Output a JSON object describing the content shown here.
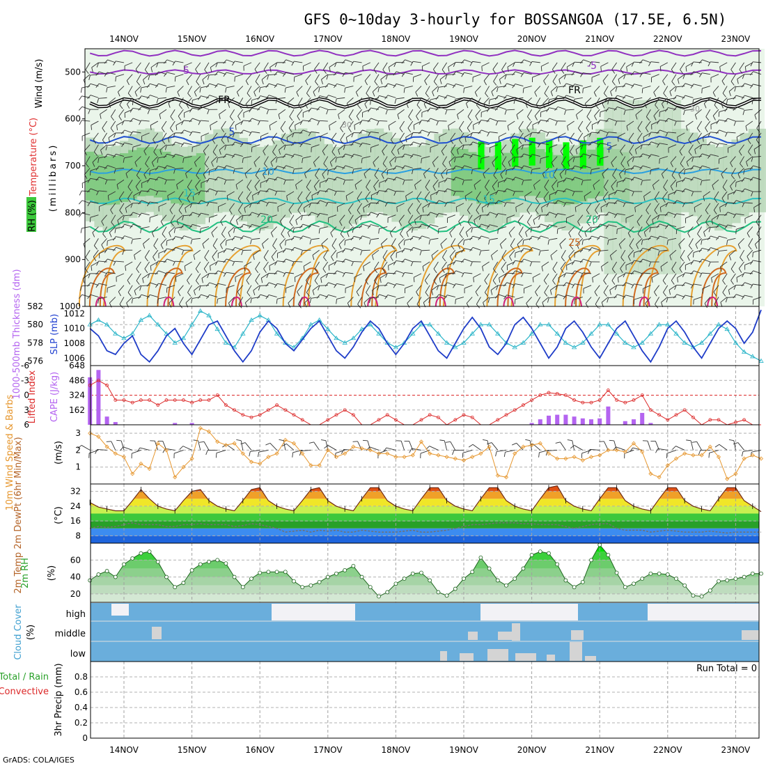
{
  "title": "GFS 0~10day 3-hourly for BOSSANGOA (17.5E, 6.5N)",
  "footer": "GrADS: COLA/IGES",
  "dates": [
    "14NOV",
    "15NOV",
    "16NOV",
    "17NOV",
    "18NOV",
    "19NOV",
    "20NOV",
    "21NOV",
    "22NOV",
    "23NOV"
  ],
  "colors": {
    "rh_light": "#e8f4e8",
    "rh_mid": "#b4d4b4",
    "rh_dark": "#78c878",
    "rh_bright": "#00ff00",
    "slp": "#1e3cc8",
    "thickness": "#28b4c8",
    "cape": "#b464f0",
    "li": "#dc2828",
    "wind_speed": "#e6962d",
    "cloud": "#6aaedc",
    "cloud_gap": "#d4d4d4"
  },
  "panels": {
    "upper": {
      "labels": [
        "RH (%)",
        "Temperature (°C)",
        "Wind (m/s)"
      ],
      "ylabel": "(millibars)",
      "yticks": [
        "500",
        "600",
        "700",
        "800",
        "900",
        "1000"
      ],
      "contour_labels": [
        "-5",
        "-5",
        "FR",
        "FR",
        "5",
        "5",
        "10",
        "10",
        "15",
        "15",
        "20",
        "20",
        "25",
        "30",
        "30"
      ]
    },
    "thickness": {
      "left_label": "1000-500mb Thickness (dm)",
      "right_label": "SLP (mb)",
      "left_ticks": [
        "582",
        "580",
        "578",
        "576"
      ],
      "right_ticks": [
        "1012",
        "1010",
        "1008",
        "1006"
      ]
    },
    "cape": {
      "left_label": "Lifted Index",
      "right_label": "CAPE (J/kg)",
      "li_ticks": [
        "-6",
        "-3",
        "0",
        "3",
        "6"
      ],
      "cape_ticks": [
        "648",
        "486",
        "324",
        "162"
      ]
    },
    "wind10m": {
      "label": "10m Wind Speed & Barbs",
      "unit": "(m/s)",
      "yticks": [
        "3",
        "2",
        "1"
      ]
    },
    "temp2m": {
      "label": "2m Temp 2m DewPt (6hr Min/Max)",
      "unit": "(°C)",
      "yticks": [
        "32",
        "24",
        "16",
        "8"
      ]
    },
    "rh2m": {
      "label": "2m RH",
      "unit": "(%)",
      "yticks": [
        "60",
        "40",
        "20"
      ]
    },
    "cloud": {
      "label": "Cloud Cover",
      "unit": "(%)",
      "levels": [
        "high",
        "middle",
        "low"
      ]
    },
    "precip": {
      "label": "3hr Precip (mm)",
      "legend_total": "Total / Rain",
      "legend_conv": "Convective",
      "run_total": "Run Total = 0",
      "yticks": [
        "0.8",
        "0.6",
        "0.4",
        "0.2",
        "0"
      ]
    }
  },
  "chart_data": {
    "type": "line",
    "x": [
      "13NOV 12Z",
      "13NOV 15Z",
      "13NOV 18Z",
      "13NOV 21Z",
      "14NOV 00Z",
      "14NOV 03Z",
      "14NOV 06Z",
      "14NOV 09Z",
      "14NOV 12Z",
      "14NOV 15Z",
      "14NOV 18Z",
      "14NOV 21Z",
      "15NOV 00Z",
      "15NOV 03Z",
      "15NOV 06Z",
      "15NOV 09Z",
      "15NOV 12Z",
      "15NOV 15Z",
      "15NOV 18Z",
      "15NOV 21Z",
      "16NOV 00Z",
      "16NOV 03Z",
      "16NOV 06Z",
      "16NOV 09Z",
      "16NOV 12Z",
      "16NOV 15Z",
      "16NOV 18Z",
      "16NOV 21Z",
      "17NOV 00Z",
      "17NOV 03Z",
      "17NOV 06Z",
      "17NOV 09Z",
      "17NOV 12Z",
      "17NOV 15Z",
      "17NOV 18Z",
      "17NOV 21Z",
      "18NOV 00Z",
      "18NOV 03Z",
      "18NOV 06Z",
      "18NOV 09Z",
      "18NOV 12Z",
      "18NOV 15Z",
      "18NOV 18Z",
      "18NOV 21Z",
      "19NOV 00Z",
      "19NOV 03Z",
      "19NOV 06Z",
      "19NOV 09Z",
      "19NOV 12Z",
      "19NOV 15Z",
      "19NOV 18Z",
      "19NOV 21Z",
      "20NOV 00Z",
      "20NOV 03Z",
      "20NOV 06Z",
      "20NOV 09Z",
      "20NOV 12Z",
      "20NOV 15Z",
      "20NOV 18Z",
      "20NOV 21Z",
      "21NOV 00Z",
      "21NOV 03Z",
      "21NOV 06Z",
      "21NOV 09Z",
      "21NOV 12Z",
      "21NOV 15Z",
      "21NOV 18Z",
      "21NOV 21Z",
      "22NOV 00Z",
      "22NOV 03Z",
      "22NOV 06Z",
      "22NOV 09Z",
      "22NOV 12Z",
      "22NOV 15Z",
      "22NOV 18Z",
      "22NOV 21Z",
      "23NOV 00Z",
      "23NOV 03Z",
      "23NOV 06Z",
      "23NOV 09Z"
    ],
    "series": [
      {
        "name": "SLP (mb)",
        "values": [
          1010,
          1009,
          1007,
          1006.5,
          1008,
          1009,
          1006.5,
          1005.5,
          1007,
          1009,
          1010,
          1008,
          1006.5,
          1008.5,
          1010.5,
          1011,
          1009,
          1007,
          1005.5,
          1007,
          1009.5,
          1011,
          1010,
          1008,
          1007,
          1008.5,
          1010,
          1011,
          1009,
          1007,
          1006,
          1007.5,
          1009.5,
          1011,
          1010,
          1008,
          1006.5,
          1008,
          1010,
          1011,
          1009,
          1007,
          1006,
          1008,
          1010,
          1011.5,
          1010,
          1007.5,
          1006.5,
          1008,
          1010.5,
          1011.5,
          1010,
          1008,
          1006,
          1007.5,
          1010,
          1011,
          1009.5,
          1007.5,
          1006,
          1008,
          1010,
          1011,
          1009,
          1007,
          1005.5,
          1007.5,
          1010,
          1011,
          1009.5,
          1007.5,
          1006,
          1008,
          1010,
          1011,
          1010,
          1008,
          1009.5,
          1012.5
        ]
      },
      {
        "name": "1000-500mb Thickness (dm)",
        "values": [
          580,
          580.5,
          580,
          579,
          578.5,
          579,
          580.5,
          581,
          580,
          579,
          578,
          578.5,
          580,
          581.5,
          581,
          579.5,
          578,
          577.5,
          579,
          580.5,
          581,
          580.5,
          579,
          578,
          577.5,
          578.5,
          580,
          580.5,
          579.5,
          578.5,
          578,
          578.5,
          579.5,
          580,
          579,
          578,
          577.5,
          578,
          579,
          580,
          580,
          579,
          578,
          577.5,
          578,
          579,
          580,
          580,
          579,
          578,
          577.5,
          578,
          579,
          580,
          580,
          579,
          578,
          577.5,
          578,
          579,
          580,
          580,
          579,
          578,
          577.5,
          578,
          579,
          580,
          580,
          579,
          578,
          577.5,
          578,
          579,
          580,
          579.5,
          578,
          577,
          576.5,
          576
        ]
      },
      {
        "name": "Lifted Index",
        "values": [
          -2,
          -3,
          -2,
          1,
          1,
          1.5,
          1,
          1,
          2,
          1,
          1,
          1,
          1.5,
          1,
          1,
          0,
          2,
          3,
          4,
          4.5,
          4,
          3,
          2,
          3,
          4,
          5,
          6,
          6,
          5,
          4,
          3,
          4,
          6,
          6,
          5,
          4,
          5,
          6,
          6,
          5,
          4,
          4.5,
          6,
          5,
          4,
          4.5,
          6,
          6,
          5,
          4,
          3,
          2,
          1,
          0,
          -0.5,
          -0.3,
          0,
          1,
          1.5,
          1.5,
          1,
          -1,
          1,
          1.5,
          1,
          0,
          3,
          4,
          5,
          4,
          3,
          4.5,
          6,
          5,
          5,
          6,
          5.5,
          5,
          6,
          6
        ]
      },
      {
        "name": "CAPE (J/kg)",
        "values": [
          520,
          600,
          90,
          30,
          0,
          0,
          0,
          0,
          0,
          0,
          20,
          0,
          20,
          0,
          0,
          0,
          0,
          0,
          0,
          0,
          0,
          0,
          0,
          0,
          0,
          0,
          0,
          0,
          0,
          0,
          0,
          0,
          0,
          0,
          0,
          0,
          0,
          0,
          0,
          0,
          0,
          0,
          0,
          0,
          0,
          0,
          0,
          0,
          0,
          0,
          0,
          0,
          20,
          60,
          100,
          110,
          110,
          90,
          70,
          60,
          70,
          200,
          0,
          40,
          60,
          130,
          20,
          0,
          0,
          0,
          0,
          0,
          0,
          0,
          0,
          0,
          0,
          0,
          0,
          0
        ]
      },
      {
        "name": "10m Wind Speed (m/s)",
        "values": [
          3,
          2.8,
          2.2,
          1.8,
          1.6,
          0.6,
          1.2,
          0.9,
          2.4,
          2,
          0.4,
          1,
          1.5,
          3.3,
          3.1,
          2.5,
          2.3,
          2.4,
          1.8,
          1.3,
          1.2,
          1.6,
          1.8,
          2.6,
          2.4,
          1.8,
          1.1,
          1.1,
          2,
          1.6,
          1.8,
          2.2,
          2.1,
          2,
          1.8,
          1.8,
          1.6,
          1.6,
          1.7,
          2.5,
          1.8,
          1.7,
          1.6,
          1.5,
          1.4,
          1.6,
          1.8,
          2.2,
          0.5,
          0.4,
          1.8,
          2.2,
          2.3,
          2.4,
          1.8,
          1.5,
          1.5,
          1.6,
          1.4,
          1.6,
          1.7,
          2,
          2,
          1.9,
          2.4,
          1.9,
          0.6,
          0.4,
          1.1,
          1.5,
          1.8,
          1.7,
          1.7,
          2.2,
          1.6,
          0.3,
          0.6,
          1.5,
          1.7,
          1.5
        ]
      },
      {
        "name": "2m Temp (°C)",
        "values": [
          26,
          23.5,
          22.5,
          21.5,
          21.5,
          27,
          33,
          28,
          24,
          22.5,
          21.5,
          27,
          32,
          33,
          27,
          24,
          22.5,
          21.5,
          27,
          33,
          34,
          27,
          24,
          22.5,
          21.5,
          27,
          33,
          34,
          27,
          24,
          22.5,
          21.5,
          28,
          34,
          34,
          27,
          24,
          22.5,
          21.5,
          28,
          34,
          34,
          27,
          24,
          22.5,
          21.5,
          28,
          34,
          34,
          27,
          24,
          22.5,
          21.5,
          28,
          34,
          35,
          27,
          24,
          22.5,
          21.5,
          28,
          34,
          34,
          27,
          24,
          22.5,
          21.5,
          28,
          34,
          34,
          27,
          24,
          22.5,
          21.5,
          28,
          34,
          34,
          27,
          24,
          21
        ]
      },
      {
        "name": "2m DewPt (°C)",
        "values": [
          12,
          13,
          12.5,
          13,
          14,
          15,
          14,
          14,
          14,
          13,
          13,
          14,
          14,
          14.5,
          14,
          14,
          14,
          13,
          13.5,
          14.5,
          14,
          13,
          12,
          10,
          10.5,
          11,
          10,
          11,
          10.5,
          11,
          10,
          10,
          11,
          10.5,
          10,
          10,
          10,
          10.5,
          11,
          10,
          10,
          10.5,
          11,
          12,
          13,
          14,
          14,
          14.5,
          15,
          15,
          15,
          14.5,
          14.5,
          14,
          14,
          14,
          13,
          12,
          13,
          14,
          14.5,
          14.5,
          12,
          11,
          11,
          11,
          10,
          10.5,
          11,
          10.5,
          10,
          10,
          10,
          10.5,
          10,
          9.5,
          10,
          10,
          10,
          10
        ]
      },
      {
        "name": "2m RH (%)",
        "values": [
          36,
          43,
          47,
          40,
          55,
          62,
          68,
          70,
          58,
          40,
          28,
          33,
          48,
          55,
          58,
          60,
          56,
          40,
          28,
          38,
          45,
          46,
          46,
          46,
          35,
          28,
          30,
          34,
          40,
          44,
          48,
          53,
          40,
          28,
          17,
          22,
          32,
          38,
          44,
          45,
          36,
          22,
          18,
          26,
          38,
          46,
          63,
          50,
          36,
          30,
          38,
          50,
          66,
          70,
          68,
          55,
          36,
          28,
          34,
          60,
          78,
          66,
          45,
          28,
          32,
          38,
          44,
          44,
          43,
          38,
          30,
          18,
          17,
          24,
          35,
          36,
          38,
          40,
          44,
          44
        ]
      },
      {
        "name": "3hr Precip (mm)",
        "values": [
          0,
          0,
          0,
          0,
          0,
          0,
          0,
          0,
          0,
          0,
          0,
          0,
          0,
          0,
          0,
          0,
          0,
          0,
          0,
          0,
          0,
          0,
          0,
          0,
          0,
          0,
          0,
          0,
          0,
          0,
          0,
          0,
          0,
          0,
          0,
          0,
          0,
          0,
          0,
          0,
          0,
          0,
          0,
          0,
          0,
          0,
          0,
          0,
          0,
          0,
          0,
          0,
          0,
          0,
          0,
          0,
          0,
          0,
          0,
          0,
          0,
          0,
          0,
          0,
          0,
          0,
          0,
          0,
          0,
          0,
          0,
          0,
          0,
          0,
          0,
          0,
          0,
          0,
          0,
          0
        ]
      }
    ],
    "ylim": {
      "slp": [
        1005,
        1012.5
      ],
      "thickness": [
        576,
        582
      ],
      "lifted_index": [
        -6,
        6
      ],
      "cape": [
        0,
        648
      ],
      "wind": [
        0,
        3.5
      ],
      "temp": [
        4,
        36
      ],
      "rh": [
        10,
        80
      ],
      "precip": [
        0,
        1
      ]
    },
    "grid": true
  }
}
